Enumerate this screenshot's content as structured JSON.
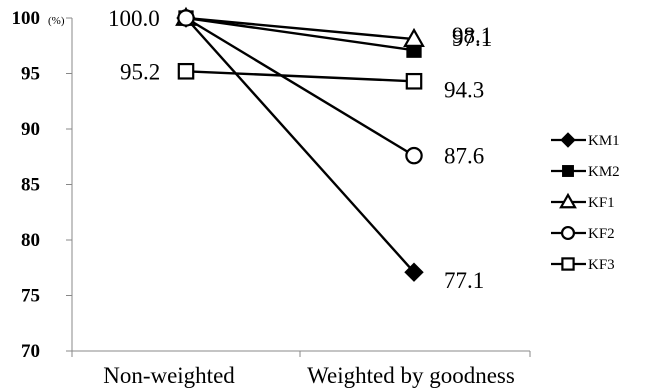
{
  "chart_data": {
    "type": "line",
    "categories": [
      "Non-weighted",
      "Weighted by goodness"
    ],
    "y_unit": "(%)",
    "ylim": [
      70,
      100
    ],
    "yticks": [
      70,
      75,
      80,
      85,
      90,
      95,
      100
    ],
    "grid": false,
    "legend_position": "right",
    "series": [
      {
        "name": "KM1",
        "marker": "diamond-filled",
        "values": [
          100.0,
          77.1
        ]
      },
      {
        "name": "KM2",
        "marker": "square-filled",
        "values": [
          100.0,
          97.1
        ]
      },
      {
        "name": "KF1",
        "marker": "triangle-open",
        "values": [
          100.0,
          98.1
        ]
      },
      {
        "name": "KF2",
        "marker": "circle-open",
        "values": [
          100.0,
          87.6
        ]
      },
      {
        "name": "KF3",
        "marker": "square-open",
        "values": [
          95.2,
          94.3
        ]
      }
    ],
    "data_labels": [
      {
        "series": "KM1",
        "category": "Non-weighted",
        "text": "100.0"
      },
      {
        "series": "KF3",
        "category": "Non-weighted",
        "text": "95.2"
      },
      {
        "series": "KF1",
        "category": "Weighted by goodness",
        "text": "98.1"
      },
      {
        "series": "KM2",
        "category": "Weighted by goodness",
        "text": "97.1"
      },
      {
        "series": "KF3",
        "category": "Weighted by goodness",
        "text": "94.3"
      },
      {
        "series": "KF2",
        "category": "Weighted by goodness",
        "text": "87.6"
      },
      {
        "series": "KM1",
        "category": "Weighted by goodness",
        "text": "77.1"
      }
    ],
    "colors": {
      "line": "#000000",
      "background": "#ffffff"
    }
  }
}
